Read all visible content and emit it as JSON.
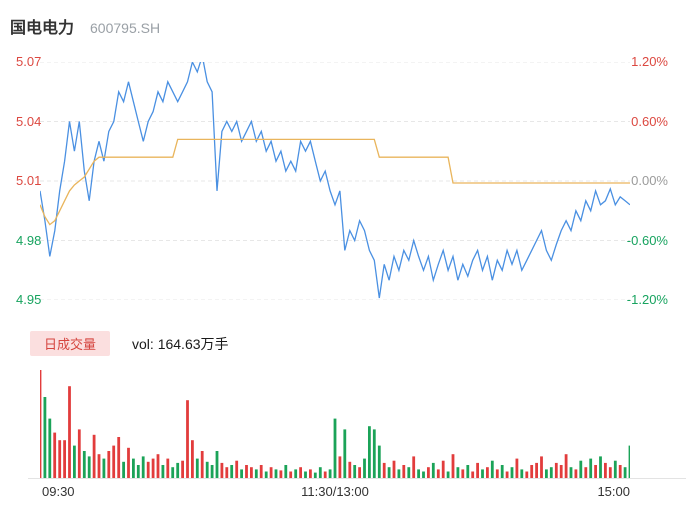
{
  "header": {
    "stock_name": "国电电力",
    "stock_code": "600795.SH"
  },
  "chart_data": {
    "type": "line",
    "title": "国电电力 600795.SH",
    "prev_close": 5.01,
    "grid": "horizontal-dashed",
    "x_axis": {
      "labels": [
        "09:30",
        "11:30/13:00",
        "15:00"
      ]
    },
    "y_axis_price": {
      "range": [
        4.95,
        5.07
      ],
      "ticks": [
        {
          "label": "5.07",
          "color": "#dc4840"
        },
        {
          "label": "5.04",
          "color": "#dc4840"
        },
        {
          "label": "5.01",
          "color": "#dc4840"
        },
        {
          "label": "4.98",
          "color": "#17a35f"
        },
        {
          "label": "4.95",
          "color": "#17a35f"
        }
      ]
    },
    "y_axis_pct": {
      "ticks": [
        {
          "label": "1.20%",
          "color": "#dc4840"
        },
        {
          "label": "0.60%",
          "color": "#dc4840"
        },
        {
          "label": "0.00%",
          "color": "#9b9b9b"
        },
        {
          "label": "-0.60%",
          "color": "#17a35f"
        },
        {
          "label": "-1.20%",
          "color": "#17a35f"
        }
      ]
    },
    "series": [
      {
        "name": "price",
        "color": "#4a90e2",
        "values": [
          5.005,
          4.99,
          4.972,
          4.985,
          5.005,
          5.02,
          5.04,
          5.025,
          5.04,
          5.015,
          5.0,
          5.02,
          5.03,
          5.02,
          5.035,
          5.04,
          5.055,
          5.05,
          5.06,
          5.05,
          5.04,
          5.03,
          5.04,
          5.045,
          5.055,
          5.05,
          5.06,
          5.055,
          5.05,
          5.055,
          5.06,
          5.07,
          5.065,
          5.073,
          5.06,
          5.055,
          5.005,
          5.035,
          5.04,
          5.035,
          5.04,
          5.03,
          5.035,
          5.04,
          5.03,
          5.035,
          5.025,
          5.03,
          5.02,
          5.025,
          5.015,
          5.02,
          5.015,
          5.03,
          5.025,
          5.03,
          5.02,
          5.01,
          5.015,
          5.005,
          4.998,
          5.005,
          4.975,
          4.985,
          4.98,
          4.99,
          4.985,
          4.975,
          4.97,
          4.951,
          4.968,
          4.96,
          4.972,
          4.965,
          4.975,
          4.97,
          4.98,
          4.972,
          4.965,
          4.972,
          4.96,
          4.968,
          4.975,
          4.965,
          4.972,
          4.96,
          4.968,
          4.962,
          4.97,
          4.975,
          4.965,
          4.972,
          4.96,
          4.97,
          4.965,
          4.975,
          4.968,
          4.975,
          4.965,
          4.97,
          4.975,
          4.98,
          4.985,
          4.975,
          4.97,
          4.978,
          4.985,
          4.99,
          4.985,
          4.995,
          4.99,
          5.0,
          4.995,
          5.005,
          4.998,
          5.0,
          5.006,
          4.998,
          5.002,
          5.0,
          4.998
        ]
      },
      {
        "name": "avg_price",
        "color": "#e9b55c",
        "values": [
          4.998,
          4.992,
          4.988,
          4.99,
          4.995,
          5.0,
          5.005,
          5.008,
          5.01,
          5.012,
          5.016,
          5.02,
          5.022,
          5.022,
          5.022,
          5.022,
          5.022,
          5.022,
          5.022,
          5.022,
          5.022,
          5.022,
          5.022,
          5.022,
          5.022,
          5.022,
          5.022,
          5.022,
          5.031,
          5.031,
          5.031,
          5.031,
          5.031,
          5.031,
          5.031,
          5.031,
          5.031,
          5.031,
          5.031,
          5.031,
          5.031,
          5.031,
          5.031,
          5.031,
          5.031,
          5.031,
          5.031,
          5.031,
          5.031,
          5.031,
          5.031,
          5.031,
          5.031,
          5.031,
          5.031,
          5.031,
          5.031,
          5.031,
          5.031,
          5.031,
          5.031,
          5.031,
          5.031,
          5.031,
          5.031,
          5.031,
          5.031,
          5.031,
          5.031,
          5.022,
          5.022,
          5.022,
          5.022,
          5.022,
          5.022,
          5.022,
          5.022,
          5.022,
          5.022,
          5.022,
          5.022,
          5.022,
          5.022,
          5.022,
          5.009,
          5.009,
          5.009,
          5.009,
          5.009,
          5.009,
          5.009,
          5.009,
          5.009,
          5.009,
          5.009,
          5.009,
          5.009,
          5.009,
          5.009,
          5.009,
          5.009,
          5.009,
          5.009,
          5.009,
          5.009,
          5.009,
          5.009,
          5.009,
          5.009,
          5.009,
          5.009,
          5.009,
          5.009,
          5.009,
          5.009,
          5.009,
          5.009,
          5.009,
          5.009,
          5.009,
          5.009
        ]
      }
    ],
    "volume": {
      "label": "日成交量",
      "text": "vol: 164.63万手",
      "badge_bg": "#fbdfdf",
      "badge_color": "#d5453f",
      "up_color": "#e23c3c",
      "down_color": "#1ba358",
      "values": [
        100,
        75,
        55,
        42,
        35,
        35,
        85,
        30,
        45,
        25,
        20,
        40,
        22,
        18,
        25,
        30,
        38,
        15,
        28,
        18,
        12,
        20,
        15,
        18,
        22,
        12,
        18,
        10,
        14,
        16,
        72,
        35,
        18,
        25,
        15,
        12,
        25,
        14,
        10,
        12,
        16,
        8,
        12,
        10,
        8,
        12,
        6,
        10,
        8,
        7,
        12,
        6,
        8,
        10,
        6,
        8,
        5,
        10,
        6,
        8,
        55,
        20,
        45,
        15,
        12,
        10,
        18,
        48,
        45,
        30,
        14,
        10,
        16,
        8,
        12,
        10,
        20,
        8,
        6,
        10,
        14,
        8,
        16,
        6,
        22,
        10,
        8,
        12,
        6,
        14,
        8,
        10,
        16,
        8,
        12,
        6,
        10,
        18,
        8,
        6,
        12,
        14,
        20,
        8,
        10,
        14,
        12,
        22,
        10,
        8,
        16,
        10,
        18,
        12,
        20,
        14,
        10,
        16,
        12,
        10,
        30
      ]
    }
  }
}
